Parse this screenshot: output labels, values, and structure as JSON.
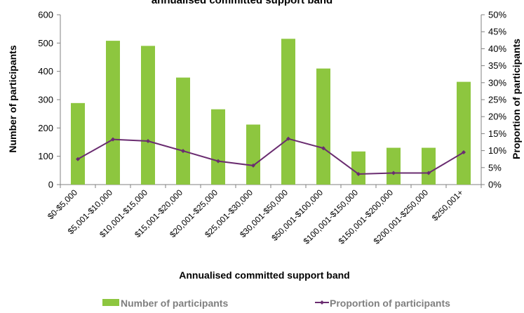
{
  "chart_data": {
    "type": "bar",
    "title": "annualised committed support band",
    "categories": [
      "$0-$5,000",
      "$5,001-$10,000",
      "$10,001-$15,000",
      "$15,001-$20,000",
      "$20,001-$25,000",
      "$25,001-$30,000",
      "$30,001-$50,000",
      "$50,001-$100,000",
      "$100,001-$150,000",
      "$150,001-$200,000",
      "$200,001-$250,000",
      "$250,001+"
    ],
    "xlabel": "Annualised committed support band",
    "ylabel": "Number of participants",
    "y2label": "Proportion of participants",
    "ylim": [
      0,
      600
    ],
    "y2lim": [
      0,
      50
    ],
    "yticks": [
      "0",
      "100",
      "200",
      "300",
      "400",
      "500",
      "600"
    ],
    "y2ticks": [
      "0%",
      "5%",
      "10%",
      "15%",
      "20%",
      "25%",
      "30%",
      "35%",
      "40%",
      "45%",
      "50%"
    ],
    "series": [
      {
        "name": "Number of participants",
        "type": "bar",
        "axis": "left",
        "color": "#8dc63f",
        "values": [
          288,
          508,
          490,
          378,
          266,
          212,
          515,
          410,
          117,
          130,
          130,
          363
        ]
      },
      {
        "name": "Proportion of participants",
        "type": "line",
        "axis": "right",
        "color": "#6a2c70",
        "values": [
          7.5,
          13.3,
          12.8,
          9.9,
          6.9,
          5.6,
          13.5,
          10.7,
          3.1,
          3.4,
          3.4,
          9.5
        ]
      }
    ],
    "grid": false,
    "legend": "bottom"
  }
}
